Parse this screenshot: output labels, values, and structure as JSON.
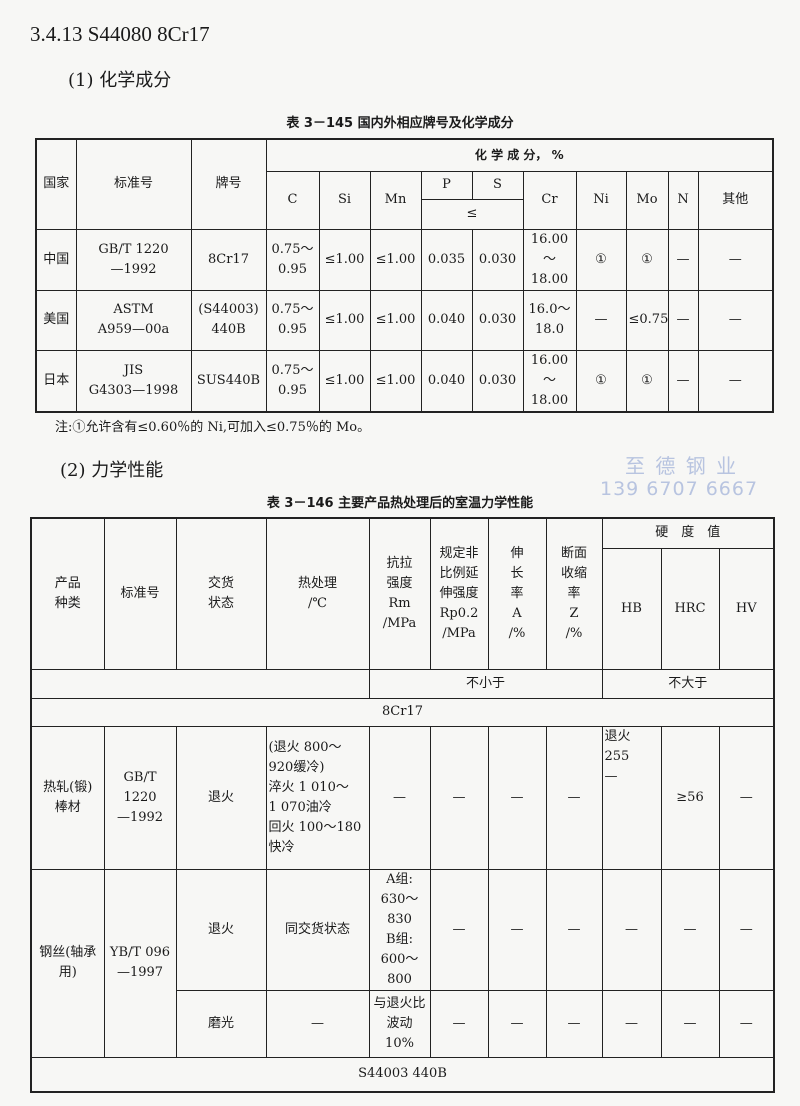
{
  "section_title": "3.4.13  S44080  8Cr17",
  "sub1": "(1) 化学成分",
  "table1": {
    "caption": "表 3－145  国内外相应牌号及化学成分",
    "headers": {
      "country": "国家",
      "standard": "标准号",
      "grade": "牌号",
      "chem": "化 学 成 分， %",
      "C": "C",
      "Si": "Si",
      "Mn": "Mn",
      "P": "P",
      "S": "S",
      "le": "≤",
      "Cr": "Cr",
      "Ni": "Ni",
      "Mo": "Mo",
      "N": "N",
      "other": "其他"
    },
    "rows": [
      [
        "中国",
        "GB/T 1220\n—1992",
        "8Cr17",
        "0.75～\n0.95",
        "≤1.00",
        "≤1.00",
        "0.035",
        "0.030",
        "16.00～\n18.00",
        "①",
        "①",
        "—",
        "—"
      ],
      [
        "美国",
        "ASTM\nA959—00a",
        "(S44003)\n440B",
        "0.75～\n0.95",
        "≤1.00",
        "≤1.00",
        "0.040",
        "0.030",
        "16.0～\n18.0",
        "—",
        "≤0.75",
        "—",
        "—"
      ],
      [
        "日本",
        "JIS\nG4303—1998",
        "SUS440B",
        "0.75～\n0.95",
        "≤1.00",
        "≤1.00",
        "0.040",
        "0.030",
        "16.00～\n18.00",
        "①",
        "①",
        "—",
        "—"
      ]
    ],
    "note": "注:①允许含有≤0.60％的 Ni,可加入≤0.75％的 Mo。"
  },
  "sub2": "(2) 力学性能",
  "watermark": {
    "name": "至 德 钢 业",
    "phone": "139 6707 6667"
  },
  "table2": {
    "caption": "表 3－146  主要产品热处理后的室温力学性能",
    "headers": {
      "product": "产品\n种类",
      "standard": "标准号",
      "delivery": "交货\n状态",
      "heat": "热处理\n/℃",
      "rm": "抗拉\n强度\nRm\n/MPa",
      "rp": "规定非\n比例延\n伸强度\nRp0.2\n/MPa",
      "a": "伸\n长\n率\nA\n/%",
      "z": "断面\n收缩\n率\nZ\n/%",
      "hardness": "硬　度　值",
      "hb": "HB",
      "hrc": "HRC",
      "hv": "HV",
      "min": "不小于",
      "max": "不大于"
    },
    "group1": "8Cr17",
    "row1": [
      "热轧(锻)\n棒材",
      "GB/T 1220\n—1992",
      "退火",
      "(退火 800～\n920缓冷)\n淬火 1 010～\n1 070油冷\n回火 100～180\n快冷",
      "—",
      "—",
      "—",
      "—",
      "退火\n255\n—",
      "≥56",
      "—"
    ],
    "row2": [
      "钢丝(轴承\n用)",
      "YB/T 096\n—1997",
      "退火",
      "同交货状态",
      "A组:\n630～830\nB组:\n600～800",
      "—",
      "—",
      "—",
      "—",
      "—",
      "—"
    ],
    "row3": [
      "磨光",
      "—",
      "与退火比\n波动 10%",
      "—",
      "—",
      "—",
      "—",
      "—",
      "—"
    ],
    "group2": "S44003  440B"
  }
}
